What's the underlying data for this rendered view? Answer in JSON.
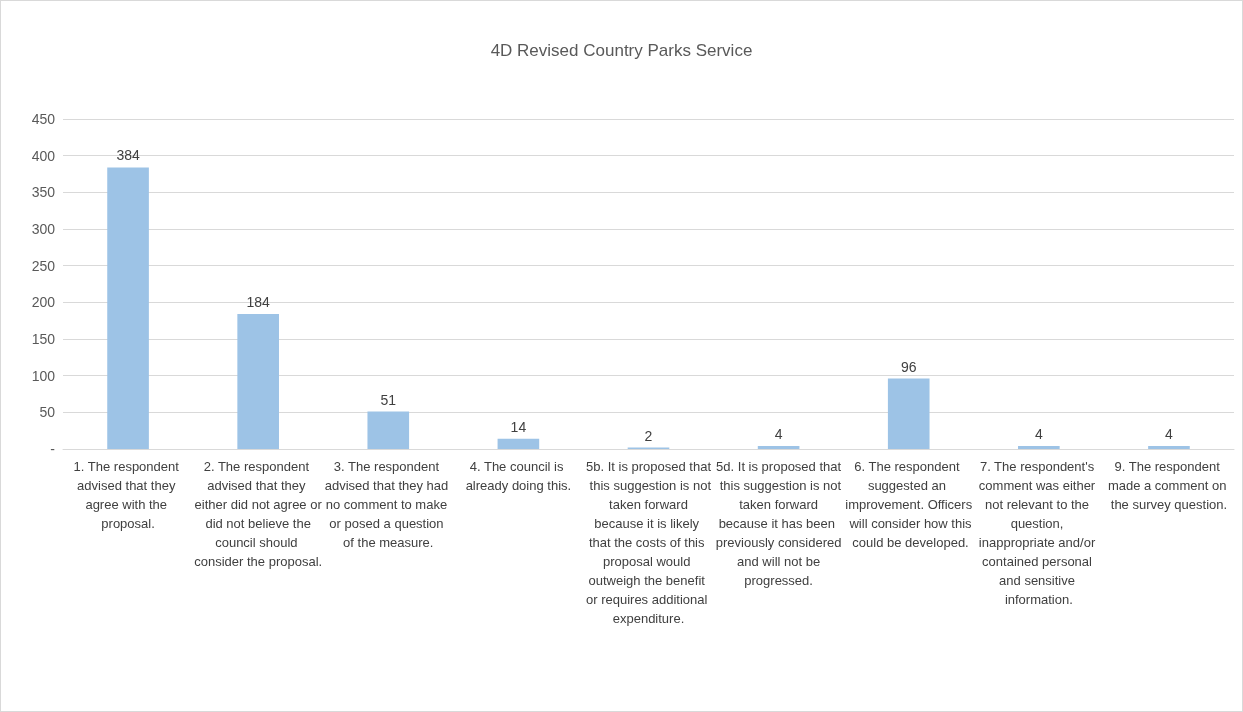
{
  "chart_data": {
    "type": "bar",
    "title": "4D Revised Country Parks Service",
    "categories": [
      "1. The respondent advised that they agree with the proposal.",
      "2. The respondent advised that they either did not agree or did not believe the council should consider the proposal.",
      "3. The respondent advised that they had no comment to make or posed a question of the measure.",
      "4. The council is already doing this.",
      "5b. It is proposed that this suggestion is not taken forward because it is likely that the costs of this proposal would outweigh the benefit or requires additional expenditure.",
      "5d. It is proposed that this suggestion is not taken forward because it has been previously considered and will not be progressed.",
      "6. The respondent suggested an improvement. Officers will consider how this could be developed.",
      "7. The respondent's comment was either not relevant to the question, inappropriate and/or contained personal and sensitive information.",
      "9. The respondent made a comment on the survey question."
    ],
    "values": [
      384,
      184,
      51,
      14,
      2,
      4,
      96,
      4,
      4
    ],
    "color": "#9dc3e6",
    "ylim": [
      0,
      450
    ],
    "yticks": [
      {
        "value": 0,
        "label": "-"
      },
      50,
      100,
      150,
      200,
      250,
      300,
      350,
      400,
      450
    ],
    "grid": "y",
    "data_labels": true
  }
}
